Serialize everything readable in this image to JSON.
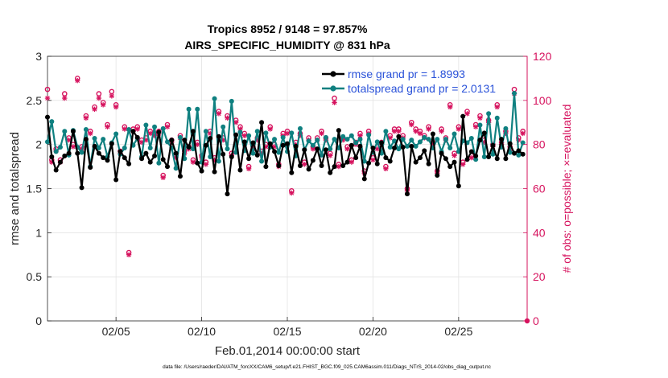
{
  "chart_data": {
    "type": "line",
    "title_line1": "Tropics 8952 / 9148 = 97.857%",
    "title_line2": "AIRS_SPECIFIC_HUMIDITY @ 831 hPa",
    "xlabel": "Feb.01,2014 00:00:00 start",
    "ylabel_left": "rmse and totalspread",
    "ylabel_right": "# of obs: o=possible; ×=evaluated",
    "xlim": [
      1,
      29
    ],
    "ylim_left": [
      0,
      3
    ],
    "ylim_right": [
      0,
      120
    ],
    "x_ticks": [
      5,
      10,
      15,
      20,
      25
    ],
    "x_tick_labels": [
      "02/05",
      "02/10",
      "02/15",
      "02/20",
      "02/25"
    ],
    "y_left_ticks": [
      0,
      0.5,
      1,
      1.5,
      2,
      2.5,
      3
    ],
    "y_left_tick_labels": [
      "0",
      "0.5",
      "1",
      "1.5",
      "2",
      "2.5",
      "3"
    ],
    "y_right_ticks": [
      0,
      20,
      40,
      60,
      80,
      100,
      120
    ],
    "y_right_tick_labels": [
      "0",
      "20",
      "40",
      "60",
      "80",
      "100",
      "120"
    ],
    "legend": {
      "position": "top-right",
      "entries": [
        "rmse grand pr = 1.8993",
        "totalspread grand pr = 2.0131"
      ]
    },
    "colors": {
      "rmse": "#000000",
      "totalspread": "#0f8080",
      "obs": "#d6135e",
      "grid": "#e3e3e3",
      "axis": "#262626"
    },
    "footer": "data file: /Users/raeder/DAI/ATM_forcXX/CAM6_setup/f.e21.FHIST_BGC.f09_025.CAM6assim.011/Diags_NTrS_2014-02/obs_diag_output.nc",
    "series": [
      {
        "name": "rmse",
        "x": [
          1.0,
          1.25,
          1.5,
          1.75,
          2.0,
          2.25,
          2.5,
          2.75,
          3.0,
          3.25,
          3.5,
          3.75,
          4.0,
          4.25,
          4.5,
          4.75,
          5.0,
          5.25,
          5.5,
          5.75,
          6.0,
          6.25,
          6.5,
          6.75,
          7.0,
          7.25,
          7.5,
          7.75,
          8.0,
          8.25,
          8.5,
          8.75,
          9.0,
          9.25,
          9.5,
          9.75,
          10.0,
          10.25,
          10.5,
          10.75,
          11.0,
          11.25,
          11.5,
          11.75,
          12.0,
          12.25,
          12.5,
          12.75,
          13.0,
          13.25,
          13.5,
          13.75,
          14.0,
          14.25,
          14.5,
          14.75,
          15.0,
          15.25,
          15.5,
          15.75,
          16.0,
          16.25,
          16.5,
          16.75,
          17.0,
          17.25,
          17.5,
          17.75,
          18.0,
          18.25,
          18.5,
          18.75,
          19.0,
          19.25,
          19.5,
          19.75,
          20.0,
          20.25,
          20.5,
          20.75,
          21.0,
          21.25,
          21.5,
          21.75,
          22.0,
          22.25,
          22.5,
          22.75,
          23.0,
          23.25,
          23.5,
          23.75,
          24.0,
          24.25,
          24.5,
          24.75,
          25.0,
          25.25,
          25.5,
          25.75,
          26.0,
          26.25,
          26.5,
          26.75,
          27.0,
          27.25,
          27.5,
          27.75,
          28.0,
          28.25,
          28.5,
          28.75
        ],
        "values": [
          2.31,
          1.86,
          1.71,
          1.8,
          1.87,
          1.9,
          2.15,
          1.9,
          1.51,
          2.06,
          1.74,
          1.98,
          1.9,
          1.85,
          1.82,
          2.01,
          1.6,
          1.92,
          1.85,
          1.78,
          2.15,
          2.08,
          1.84,
          1.9,
          1.8,
          1.87,
          2.14,
          1.83,
          1.75,
          2.05,
          1.9,
          1.64,
          2.05,
          1.97,
          2.15,
          1.79,
          1.7,
          1.99,
          2.07,
          1.69,
          2.09,
          1.89,
          1.44,
          1.86,
          2.11,
          1.71,
          2.03,
          1.84,
          2.02,
          1.88,
          2.25,
          1.75,
          2.01,
          1.92,
          1.76,
          1.99,
          2.01,
          1.68,
          1.98,
          1.76,
          1.94,
          1.72,
          1.82,
          1.95,
          1.76,
          1.94,
          1.68,
          1.75,
          2.16,
          1.76,
          1.8,
          1.99,
          1.85,
          1.98,
          1.61,
          1.79,
          1.96,
          1.78,
          2.02,
          1.85,
          1.81,
          1.96,
          2.09,
          1.97,
          1.44,
          1.98,
          1.8,
          1.85,
          1.93,
          1.78,
          2.12,
          1.65,
          1.9,
          1.84,
          1.75,
          1.8,
          1.53,
          2.32,
          1.83,
          1.92,
          1.87,
          2.05,
          2.13,
          1.86,
          1.99,
          1.84,
          2.06,
          1.84,
          2.01,
          1.9,
          1.93,
          1.89
        ]
      },
      {
        "name": "totalspread",
        "x": [
          1.0,
          1.25,
          1.5,
          1.75,
          2.0,
          2.25,
          2.5,
          2.75,
          3.0,
          3.25,
          3.5,
          3.75,
          4.0,
          4.25,
          4.5,
          4.75,
          5.0,
          5.25,
          5.5,
          5.75,
          6.0,
          6.25,
          6.5,
          6.75,
          7.0,
          7.25,
          7.5,
          7.75,
          8.0,
          8.25,
          8.5,
          8.75,
          9.0,
          9.25,
          9.5,
          9.75,
          10.0,
          10.25,
          10.5,
          10.75,
          11.0,
          11.25,
          11.5,
          11.75,
          12.0,
          12.25,
          12.5,
          12.75,
          13.0,
          13.25,
          13.5,
          13.75,
          14.0,
          14.25,
          14.5,
          14.75,
          15.0,
          15.25,
          15.5,
          15.75,
          16.0,
          16.25,
          16.5,
          16.75,
          17.0,
          17.25,
          17.5,
          17.75,
          18.0,
          18.25,
          18.5,
          18.75,
          19.0,
          19.25,
          19.5,
          19.75,
          20.0,
          20.25,
          20.5,
          20.75,
          21.0,
          21.25,
          21.5,
          21.75,
          22.0,
          22.25,
          22.5,
          22.75,
          23.0,
          23.25,
          23.5,
          23.75,
          24.0,
          24.25,
          24.5,
          24.75,
          25.0,
          25.25,
          25.5,
          25.75,
          26.0,
          26.25,
          26.5,
          26.75,
          27.0,
          27.25,
          27.5,
          27.75,
          28.0,
          28.25,
          28.5,
          28.75
        ],
        "values": [
          2.03,
          2.26,
          1.92,
          1.97,
          2.15,
          1.88,
          2.16,
          1.97,
          1.91,
          2.17,
          1.75,
          2.07,
          1.96,
          2.06,
          1.86,
          2.02,
          2.12,
          1.89,
          1.96,
          2.17,
          1.99,
          2.07,
          1.86,
          2.22,
          1.96,
          2.2,
          1.79,
          2.18,
          2.03,
          1.96,
          1.73,
          2.08,
          1.84,
          2.4,
          1.95,
          2.4,
          1.8,
          2.15,
          1.86,
          2.52,
          1.81,
          2.2,
          1.95,
          2.49,
          1.91,
          2.14,
          1.93,
          2.1,
          1.9,
          2.15,
          1.81,
          2.13,
          1.97,
          2.06,
          1.91,
          2.08,
          1.92,
          2.13,
          1.87,
          2.18,
          1.94,
          2.04,
          1.99,
          2.05,
          1.88,
          2.08,
          1.95,
          2.06,
          1.96,
          2.09,
          2.06,
          2.1,
          2.02,
          2.06,
          1.81,
          2.11,
          1.91,
          2.03,
          1.9,
          2.15,
          1.97,
          2.04,
          1.95,
          2.06,
          1.98,
          2.05,
          1.98,
          2.03,
          2.08,
          2.06,
          1.96,
          2.06,
          1.92,
          2.06,
          1.96,
          2.12,
          1.92,
          2.04,
          2.02,
          2.07,
          1.83,
          2.22,
          1.86,
          2.35,
          1.89,
          2.3,
          1.97,
          2.18,
          1.91,
          2.58,
          1.88,
          2.02
        ]
      },
      {
        "name": "obs_possible",
        "x": [
          1.0,
          1.25,
          1.5,
          1.75,
          2.0,
          2.25,
          2.5,
          2.75,
          3.0,
          3.25,
          3.5,
          3.75,
          4.0,
          4.25,
          4.5,
          4.75,
          5.0,
          5.25,
          5.5,
          5.75,
          6.0,
          6.25,
          6.5,
          6.75,
          7.0,
          7.25,
          7.5,
          7.75,
          8.0,
          8.25,
          8.5,
          8.75,
          9.0,
          9.25,
          9.5,
          9.75,
          10.0,
          10.25,
          10.5,
          10.75,
          11.0,
          11.25,
          11.5,
          11.75,
          12.0,
          12.25,
          12.5,
          12.75,
          13.0,
          13.25,
          13.5,
          13.75,
          14.0,
          14.25,
          14.5,
          14.75,
          15.0,
          15.25,
          15.5,
          15.75,
          16.0,
          16.25,
          16.5,
          16.75,
          17.0,
          17.25,
          17.5,
          17.75,
          18.0,
          18.25,
          18.5,
          18.75,
          19.0,
          19.25,
          19.5,
          19.75,
          20.0,
          20.25,
          20.5,
          20.75,
          21.0,
          21.25,
          21.5,
          21.75,
          22.0,
          22.25,
          22.5,
          22.75,
          23.0,
          23.25,
          23.5,
          23.75,
          24.0,
          24.25,
          24.5,
          24.75,
          25.0,
          25.25,
          25.5,
          25.75,
          26.0,
          26.25,
          26.5,
          26.75,
          27.0,
          27.25,
          27.5,
          27.75,
          28.0,
          28.25,
          28.5,
          28.75
        ],
        "values": [
          105,
          73,
          78,
          73,
          103,
          83,
          80,
          110,
          79,
          93,
          86,
          97,
          103,
          99,
          89,
          104,
          98,
          77,
          88,
          31,
          87,
          88,
          82,
          83,
          86,
          85,
          86,
          66,
          89,
          82,
          75,
          84,
          77,
          79,
          73,
          81,
          75,
          72,
          86,
          74,
          95,
          83,
          93,
          76,
          91,
          88,
          85,
          70,
          79,
          83,
          77,
          80,
          88,
          80,
          71,
          85,
          86,
          59,
          81,
          85,
          72,
          83,
          79,
          83,
          86,
          83,
          76,
          101,
          71,
          83,
          79,
          73,
          81,
          85,
          68,
          86,
          74,
          79,
          81,
          70,
          84,
          87,
          87,
          84,
          60,
          90,
          87,
          86,
          84,
          88,
          81,
          68,
          87,
          83,
          98,
          76,
          88,
          72,
          95,
          75,
          89,
          93,
          82,
          91,
          80,
          98,
          81,
          86,
          79,
          105,
          83,
          86
        ]
      },
      {
        "name": "obs_evaluated",
        "x": [
          1.0,
          1.25,
          1.5,
          1.75,
          2.0,
          2.25,
          2.5,
          2.75,
          3.0,
          3.25,
          3.5,
          3.75,
          4.0,
          4.25,
          4.5,
          4.75,
          5.0,
          5.25,
          5.5,
          5.75,
          6.0,
          6.25,
          6.5,
          6.75,
          7.0,
          7.25,
          7.5,
          7.75,
          8.0,
          8.25,
          8.5,
          8.75,
          9.0,
          9.25,
          9.5,
          9.75,
          10.0,
          10.25,
          10.5,
          10.75,
          11.0,
          11.25,
          11.5,
          11.75,
          12.0,
          12.25,
          12.5,
          12.75,
          13.0,
          13.25,
          13.5,
          13.75,
          14.0,
          14.25,
          14.5,
          14.75,
          15.0,
          15.25,
          15.5,
          15.75,
          16.0,
          16.25,
          16.5,
          16.75,
          17.0,
          17.25,
          17.5,
          17.75,
          18.0,
          18.25,
          18.5,
          18.75,
          19.0,
          19.25,
          19.5,
          19.75,
          20.0,
          20.25,
          20.5,
          20.75,
          21.0,
          21.25,
          21.5,
          21.75,
          22.0,
          22.25,
          22.5,
          22.75,
          23.0,
          23.25,
          23.5,
          23.75,
          24.0,
          24.25,
          24.5,
          24.75,
          25.0,
          25.25,
          25.5,
          25.75,
          26.0,
          26.25,
          26.5,
          26.75,
          27.0,
          27.25,
          27.5,
          27.75,
          28.0,
          28.25,
          28.5,
          28.75
        ],
        "values": [
          101,
          72,
          77,
          72,
          101,
          82,
          79,
          109,
          78,
          92,
          85,
          96,
          101,
          98,
          88,
          102,
          97,
          76,
          87,
          30,
          86,
          87,
          81,
          82,
          85,
          84,
          85,
          65,
          88,
          81,
          74,
          83,
          76,
          78,
          72,
          80,
          74,
          71,
          85,
          73,
          94,
          82,
          92,
          75,
          90,
          87,
          84,
          69,
          78,
          82,
          76,
          79,
          87,
          79,
          70,
          84,
          85,
          58,
          80,
          84,
          71,
          82,
          78,
          82,
          85,
          82,
          75,
          99,
          70,
          82,
          78,
          72,
          80,
          84,
          67,
          85,
          73,
          78,
          80,
          69,
          83,
          86,
          86,
          83,
          59,
          89,
          86,
          85,
          83,
          87,
          80,
          67,
          86,
          82,
          97,
          75,
          87,
          71,
          94,
          74,
          88,
          92,
          81,
          90,
          79,
          97,
          80,
          85,
          78,
          103,
          82,
          85
        ]
      }
    ]
  }
}
